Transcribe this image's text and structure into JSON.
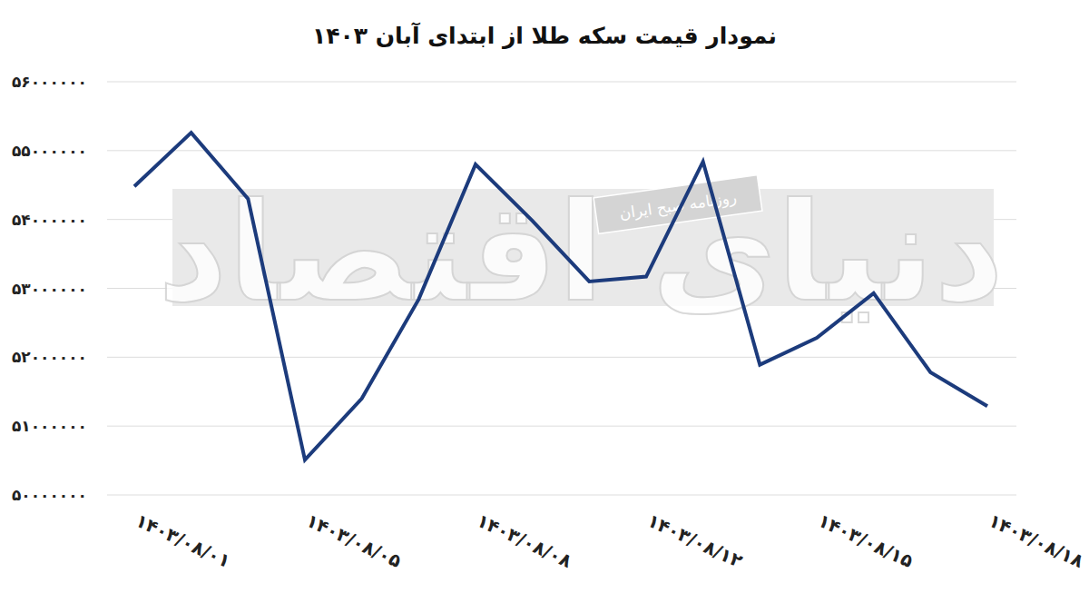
{
  "chart_data": {
    "type": "line",
    "title": "نمودار قیمت سکه طلا از ابتدای آبان ۱۴۰۳",
    "categories": [
      "۱۴۰۳/۰۸/۰۱",
      null,
      null,
      "۱۴۰۳/۰۸/۰۵",
      null,
      null,
      "۱۴۰۳/۰۸/۰۸",
      null,
      null,
      "۱۴۰۳/۰۸/۱۲",
      null,
      null,
      "۱۴۰۳/۰۸/۱۵",
      null,
      null,
      "۱۴۰۳/۰۸/۱۸"
    ],
    "values": [
      54480000,
      55260000,
      54300000,
      50510000,
      51400000,
      52840000,
      54800000,
      53980000,
      53100000,
      53170000,
      54840000,
      51890000,
      52280000,
      52930000,
      51780000,
      51290000
    ],
    "color": "#1c3b7c",
    "ylim": [
      50000000,
      56000000
    ],
    "yticks": [
      {
        "value": 50000000,
        "label": "۵۰۰۰۰۰۰۰"
      },
      {
        "value": 51000000,
        "label": "۵۱۰۰۰۰۰۰"
      },
      {
        "value": 52000000,
        "label": "۵۲۰۰۰۰۰۰"
      },
      {
        "value": 53000000,
        "label": "۵۳۰۰۰۰۰۰"
      },
      {
        "value": 54000000,
        "label": "۵۴۰۰۰۰۰۰"
      },
      {
        "value": 55000000,
        "label": "۵۵۰۰۰۰۰۰"
      },
      {
        "value": 56000000,
        "label": "۵۶۰۰۰۰۰۰"
      }
    ],
    "grid": true,
    "annotations": [
      "دنیای اقتصاد",
      "روزنامه صبح ایران"
    ]
  }
}
